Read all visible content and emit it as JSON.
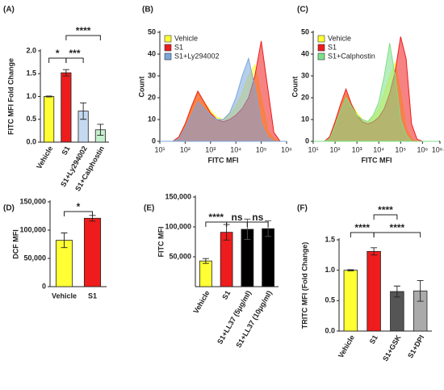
{
  "chart_data": [
    {
      "type": "bar",
      "panel": "(A)",
      "ylabel": "FITC MFI Fold Change",
      "categories": [
        "Vehicle",
        "S1",
        "S1+Ly294002",
        "S1+Calphostin"
      ],
      "values": [
        1.0,
        1.52,
        0.68,
        0.27
      ],
      "errors": [
        0.01,
        0.07,
        0.18,
        0.12
      ],
      "colors": [
        "#ffff33",
        "#ee1c1c",
        "#c5d9f1",
        "#c6efce"
      ],
      "ylim": [
        0,
        2.0
      ],
      "yticks": [
        {
          "value": 0,
          "label": "0.0"
        },
        {
          "value": 0.5,
          "label": "0.5"
        },
        {
          "value": 1.0,
          "label": "1.0"
        },
        {
          "value": 1.5,
          "label": "1.5"
        },
        {
          "value": 2.0,
          "label": "2.0"
        }
      ],
      "annotations": [
        "*",
        "***",
        "****"
      ]
    },
    {
      "type": "histogram",
      "panel": "(B)",
      "xlabel": "FITC MFI",
      "ylabel": "Count",
      "x": [
        10,
        18,
        32,
        56,
        100,
        178,
        316,
        562,
        1000,
        1778,
        3162,
        5623,
        10000,
        17783,
        31623,
        56234,
        100000,
        177828,
        316228,
        562341,
        1000000
      ],
      "series": [
        {
          "name": "Vehicle",
          "color": "#ffff33",
          "values": [
            0,
            0,
            0,
            2,
            8,
            15,
            22,
            18,
            14,
            11,
            10,
            12,
            16,
            22,
            30,
            35,
            20,
            5,
            1,
            0,
            0
          ]
        },
        {
          "name": "S1",
          "color": "#ee1c1c",
          "values": [
            0,
            0,
            0,
            2,
            8,
            16,
            23,
            18,
            13,
            10,
            9,
            10,
            12,
            15,
            20,
            30,
            46,
            25,
            4,
            0,
            0
          ]
        },
        {
          "name": "S1+Ly294002",
          "color": "#7aa6dd",
          "values": [
            0,
            0,
            0,
            1,
            6,
            12,
            18,
            15,
            12,
            10,
            10,
            13,
            20,
            30,
            38,
            25,
            8,
            2,
            0,
            0,
            0
          ]
        }
      ],
      "xlim": [
        10,
        1000000
      ],
      "log_x": true,
      "xticks": [
        {
          "value": 10,
          "label": "10¹"
        },
        {
          "value": 100,
          "label": "10²"
        },
        {
          "value": 1000,
          "label": "10³"
        },
        {
          "value": 10000,
          "label": "10⁴"
        },
        {
          "value": 100000,
          "label": "10⁵"
        },
        {
          "value": 1000000,
          "label": "10⁶"
        }
      ],
      "ylim": [
        0,
        50
      ],
      "yticks": [
        0,
        10,
        20,
        30,
        40,
        50
      ],
      "legend": "upper left"
    },
    {
      "type": "histogram",
      "panel": "(C)",
      "xlabel": "FITC MFI",
      "ylabel": "Count",
      "x": [
        10,
        18,
        32,
        56,
        100,
        178,
        316,
        562,
        1000,
        1778,
        3162,
        5623,
        10000,
        17783,
        31623,
        56234,
        100000,
        177828,
        316228,
        562341,
        1000000,
        1778279,
        5623413
      ],
      "series": [
        {
          "name": "Vehicle",
          "color": "#ffff33",
          "values": [
            0,
            0,
            0,
            2,
            8,
            15,
            22,
            17,
            13,
            10,
            9,
            11,
            15,
            22,
            30,
            36,
            22,
            6,
            1,
            0,
            0,
            0,
            0
          ]
        },
        {
          "name": "S1",
          "color": "#ee1c1c",
          "values": [
            0,
            0,
            0,
            2,
            9,
            17,
            24,
            17,
            12,
            9,
            8,
            9,
            11,
            15,
            22,
            32,
            48,
            38,
            8,
            1,
            0,
            0,
            0
          ]
        },
        {
          "name": "S1+Calphostin",
          "color": "#7ee08a",
          "values": [
            0,
            0,
            0,
            1,
            7,
            14,
            20,
            16,
            12,
            10,
            9,
            12,
            18,
            30,
            45,
            30,
            10,
            3,
            0,
            0,
            0,
            0,
            0
          ]
        }
      ],
      "xlim": [
        10,
        6309573
      ],
      "log_x": true,
      "xticks": [
        {
          "value": 10,
          "label": "10¹"
        },
        {
          "value": 100,
          "label": "10²"
        },
        {
          "value": 1000,
          "label": "10³"
        },
        {
          "value": 10000,
          "label": "10⁴"
        },
        {
          "value": 100000,
          "label": "10⁵"
        },
        {
          "value": 1000000,
          "label": "10⁶"
        },
        {
          "value": 6309573,
          "label": "10⁶·⁸"
        }
      ],
      "ylim": [
        0,
        50
      ],
      "yticks": [
        0,
        10,
        20,
        30,
        40,
        50
      ],
      "legend": "upper left"
    },
    {
      "type": "bar",
      "panel": "(D)",
      "ylabel": "DCF MFI",
      "categories": [
        "Vehicle",
        "S1"
      ],
      "values": [
        82000,
        121000
      ],
      "errors": [
        13000,
        5000
      ],
      "colors": [
        "#ffff33",
        "#ee1c1c"
      ],
      "ylim": [
        0,
        150000
      ],
      "yticks": [
        0,
        {
          "value": 50000,
          "label": "50,000"
        },
        {
          "value": 100000,
          "label": "100,000"
        },
        {
          "value": 150000,
          "label": "150,000"
        }
      ],
      "annotations": [
        "*"
      ]
    },
    {
      "type": "bar",
      "panel": "(E)",
      "ylabel": "FITC MFI",
      "categories": [
        "Vehicle",
        "S1",
        "S1+LL37 (5μg/ml)",
        "S1+LL37 (10μg/ml)"
      ],
      "values": [
        43000,
        91000,
        96000,
        97000
      ],
      "errors": [
        4000,
        13000,
        17000,
        13000
      ],
      "colors": [
        "#ffff33",
        "#ee1c1c",
        "#000000",
        "#000000"
      ],
      "ylim": [
        0,
        150000
      ],
      "yticks": [
        {
          "value": 50000,
          "label": "50,000"
        },
        {
          "value": 100000,
          "label": "100,000"
        },
        {
          "value": 150000,
          "label": "150,000"
        }
      ],
      "annotations": [
        "****",
        "ns",
        "ns"
      ]
    },
    {
      "type": "bar",
      "panel": "(F)",
      "ylabel": "TRITC MFI (Fold Change)",
      "categories": [
        "Vehicle",
        "S1",
        "S1+GSK",
        "S1+DPI"
      ],
      "values": [
        1.0,
        1.31,
        0.65,
        0.66
      ],
      "errors": [
        0.01,
        0.06,
        0.09,
        0.17
      ],
      "colors": [
        "#ffff33",
        "#ee1c1c",
        "#555555",
        "#aaaaaa"
      ],
      "ylim": [
        0,
        1.5
      ],
      "yticks": [
        {
          "value": 0,
          "label": "0.0"
        },
        {
          "value": 0.5,
          "label": "0.5"
        },
        {
          "value": 1.0,
          "label": "1.0"
        },
        {
          "value": 1.5,
          "label": "1.5"
        }
      ],
      "annotations": [
        "****",
        "****",
        "****"
      ]
    }
  ]
}
